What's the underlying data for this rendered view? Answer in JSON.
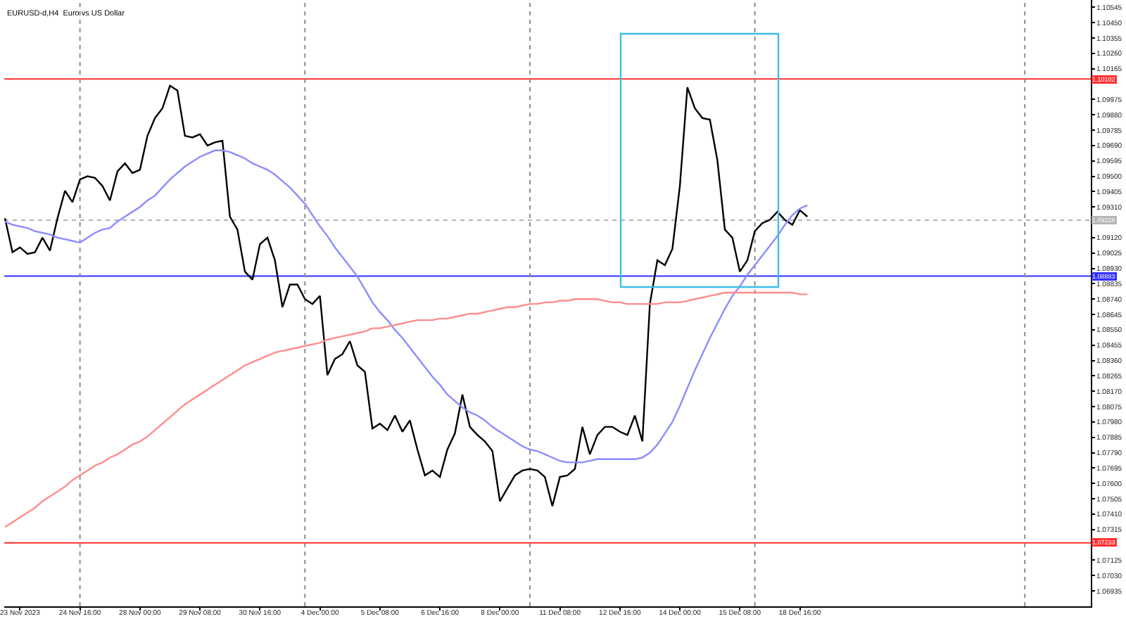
{
  "chart_data": {
    "type": "line",
    "title": "EURUSD-d,H4  Euro vs US Dollar",
    "categories": [
      null,
      null,
      "23 Nov 2023",
      null,
      null,
      null,
      null,
      null,
      null,
      null,
      "24 Nov 16:00",
      null,
      null,
      null,
      null,
      null,
      null,
      null,
      "28 Nov 00:00",
      null,
      null,
      null,
      null,
      null,
      null,
      null,
      "29 Nov 08:00",
      null,
      null,
      null,
      null,
      null,
      null,
      null,
      "30 Nov 16:00",
      null,
      null,
      null,
      null,
      null,
      null,
      null,
      "4 Dec 00:00",
      null,
      null,
      null,
      null,
      null,
      null,
      null,
      "5 Dec 08:00",
      null,
      null,
      null,
      null,
      null,
      null,
      null,
      "6 Dec 16:00",
      null,
      null,
      null,
      null,
      null,
      null,
      null,
      "8 Dec 00:00",
      null,
      null,
      null,
      null,
      null,
      null,
      null,
      "11 Dec 08:00",
      null,
      null,
      null,
      null,
      null,
      null,
      null,
      "12 Dec 16:00",
      null,
      null,
      null,
      null,
      null,
      null,
      null,
      "14 Dec 00:00",
      null,
      null,
      null,
      null,
      null,
      null,
      null,
      "15 Dec 08:00",
      null,
      null,
      null,
      null,
      null,
      null,
      null,
      "18 Dec 16:00",
      null,
      null,
      null,
      null,
      null,
      null,
      null,
      null,
      null,
      null,
      null,
      null,
      null,
      null,
      null,
      null,
      null,
      null,
      null,
      null,
      null,
      null,
      null,
      null,
      null,
      null,
      null,
      null,
      null,
      null,
      null,
      null,
      null,
      null,
      null,
      null,
      null,
      null
    ],
    "series": [
      {
        "color": "#000000",
        "values": [
          1.0924,
          1.0903,
          1.0906,
          1.0902,
          1.0903,
          1.0912,
          1.0904,
          1.0924,
          1.0941,
          1.0934,
          1.0948,
          1.095,
          1.0949,
          1.0944,
          1.0935,
          1.0953,
          1.0958,
          1.0952,
          1.0954,
          1.0975,
          1.0986,
          1.0992,
          1.1006,
          1.1003,
          1.0975,
          1.0974,
          1.0976,
          1.0969,
          1.0971,
          1.0972,
          1.0925,
          1.0917,
          1.0891,
          1.0886,
          1.0908,
          1.0912,
          1.0898,
          1.0869,
          1.0883,
          1.0883,
          1.0874,
          1.0871,
          1.0876,
          1.0827,
          1.0837,
          1.084,
          1.0848,
          1.0833,
          1.0829,
          1.0794,
          1.0797,
          1.0793,
          1.0802,
          1.0792,
          1.0799,
          1.0781,
          1.0765,
          1.0768,
          1.0764,
          1.0781,
          1.0791,
          1.0815,
          1.0795,
          1.079,
          1.0786,
          1.078,
          1.0749,
          1.0757,
          1.0765,
          1.0768,
          1.0769,
          1.0768,
          1.0764,
          1.0746,
          1.0764,
          1.0765,
          1.0769,
          1.0795,
          1.0778,
          1.079,
          1.0795,
          1.0795,
          1.0792,
          1.079,
          1.0802,
          1.0786,
          1.0871,
          1.0898,
          1.0895,
          1.0905,
          1.0944,
          1.1005,
          1.0992,
          1.0986,
          1.0985,
          1.096,
          1.0917,
          1.0912,
          1.0891,
          1.0898,
          1.0916,
          1.0921,
          1.0923,
          1.0928,
          1.0923,
          1.092,
          1.0929,
          1.0925,
          null,
          null,
          null,
          null,
          null,
          null,
          null,
          null,
          null,
          null,
          null,
          null,
          null,
          null,
          null,
          null,
          null,
          null,
          null,
          null,
          null,
          null,
          null,
          null,
          null,
          null,
          null,
          null,
          null,
          null,
          null,
          null,
          null,
          null,
          null,
          null,
          null
        ]
      },
      {
        "color": "#8c8cff",
        "values": [
          1.0922,
          1.092,
          1.0919,
          1.0918,
          1.0916,
          1.0915,
          1.0914,
          1.0912,
          1.0911,
          1.091,
          1.0909,
          1.0912,
          1.0915,
          1.0917,
          1.0918,
          1.0922,
          1.0925,
          1.0928,
          1.0931,
          1.0935,
          1.0938,
          1.0943,
          1.0948,
          1.0952,
          1.0956,
          1.0959,
          1.0962,
          1.0964,
          1.0966,
          1.0966,
          1.0965,
          1.0963,
          1.0961,
          1.0958,
          1.0956,
          1.0954,
          1.0951,
          1.0947,
          1.0943,
          1.0938,
          1.0933,
          1.0926,
          1.0919,
          1.0913,
          1.0906,
          1.09,
          1.0894,
          1.0888,
          1.088,
          1.0872,
          1.0866,
          1.0861,
          1.0855,
          1.085,
          1.0844,
          1.0838,
          1.0832,
          1.0826,
          1.0821,
          1.0815,
          1.0811,
          1.0807,
          1.0804,
          1.0802,
          1.0799,
          1.0795,
          1.0792,
          1.0789,
          1.0786,
          1.0783,
          1.0781,
          1.078,
          1.0778,
          1.0776,
          1.0774,
          1.0773,
          1.0773,
          1.0773,
          1.0774,
          1.0775,
          1.0775,
          1.0775,
          1.0775,
          1.0775,
          1.0775,
          1.0776,
          1.0779,
          1.0784,
          1.0791,
          1.0798,
          1.0808,
          1.0819,
          1.083,
          1.084,
          1.085,
          1.0859,
          1.0868,
          1.0876,
          1.0882,
          1.0889,
          1.0895,
          1.0901,
          1.0907,
          1.0913,
          1.092,
          1.0926,
          1.093,
          1.0932,
          null,
          null,
          null,
          null,
          null,
          null,
          null,
          null,
          null,
          null,
          null,
          null,
          null,
          null,
          null,
          null,
          null,
          null,
          null,
          null,
          null,
          null,
          null,
          null,
          null,
          null,
          null,
          null,
          null,
          null,
          null,
          null,
          null,
          null,
          null,
          null,
          null
        ]
      },
      {
        "color": "#ff8c8c",
        "values": [
          1.0733,
          1.0736,
          1.0739,
          1.0742,
          1.0745,
          1.0749,
          1.0752,
          1.0755,
          1.0758,
          1.0762,
          1.0765,
          1.0768,
          1.0771,
          1.0773,
          1.0776,
          1.0778,
          1.0781,
          1.0784,
          1.0786,
          1.0789,
          1.0793,
          1.0797,
          1.0801,
          1.0805,
          1.0809,
          1.0812,
          1.0815,
          1.0818,
          1.0821,
          1.0824,
          1.0827,
          1.083,
          1.0833,
          1.0835,
          1.0837,
          1.0839,
          1.0841,
          1.0842,
          1.0843,
          1.0844,
          1.0845,
          1.0846,
          1.0847,
          1.0849,
          1.085,
          1.0851,
          1.0852,
          1.0853,
          1.0854,
          1.0856,
          1.0856,
          1.0857,
          1.0858,
          1.0859,
          1.086,
          1.0861,
          1.0861,
          1.0861,
          1.0862,
          1.0862,
          1.0863,
          1.0864,
          1.0865,
          1.0865,
          1.0866,
          1.0867,
          1.0868,
          1.0869,
          1.0869,
          1.087,
          1.0871,
          1.0871,
          1.0872,
          1.0872,
          1.0873,
          1.0873,
          1.0874,
          1.0874,
          1.0874,
          1.0874,
          1.0873,
          1.0872,
          1.0872,
          1.0871,
          1.0871,
          1.0871,
          1.0871,
          1.0871,
          1.0872,
          1.0872,
          1.0872,
          1.0873,
          1.0874,
          1.0875,
          1.0876,
          1.0877,
          1.0878,
          1.0878,
          1.0878,
          1.0878,
          1.0878,
          1.0878,
          1.0878,
          1.0878,
          1.0878,
          1.0878,
          1.0877,
          1.0877,
          null,
          null,
          null,
          null,
          null,
          null,
          null,
          null,
          null,
          null,
          null,
          null,
          null,
          null,
          null,
          null,
          null,
          null,
          null,
          null,
          null,
          null,
          null,
          null,
          null,
          null,
          null,
          null,
          null,
          null,
          null,
          null,
          null,
          null,
          null,
          null,
          null
        ]
      }
    ],
    "ylim": [
      1.0684,
      1.1059
    ],
    "yticks": [
      1.10545,
      {
        "value": 1.1045,
        "label": "1.10450"
      },
      1.10355,
      {
        "value": 1.1026,
        "label": "1.10260"
      },
      1.10165,
      1.09975,
      {
        "value": 1.0988,
        "label": "1.09880"
      },
      1.09785,
      {
        "value": 1.0969,
        "label": "1.09690"
      },
      1.09595,
      {
        "value": 1.095,
        "label": "1.09500"
      },
      1.09405,
      {
        "value": 1.0931,
        "label": "1.09310"
      },
      {
        "value": 1.0912,
        "label": "1.09120"
      },
      1.09025,
      {
        "value": 1.0893,
        "label": "1.08930"
      },
      1.08835,
      {
        "value": 1.0874,
        "label": "1.08740"
      },
      1.08645,
      {
        "value": 1.0855,
        "label": "1.08550"
      },
      1.08455,
      {
        "value": 1.0836,
        "label": "1.08360"
      },
      1.08265,
      {
        "value": 1.0817,
        "label": "1.08170"
      },
      1.08075,
      {
        "value": 1.0798,
        "label": "1.07980"
      },
      1.07885,
      {
        "value": 1.0779,
        "label": "1.07790"
      },
      1.07695,
      {
        "value": 1.076,
        "label": "1.07600"
      },
      1.07505,
      {
        "value": 1.0741,
        "label": "1.07410"
      },
      1.07315,
      1.07125,
      {
        "value": 1.0703,
        "label": "1.07030"
      },
      1.06935
    ],
    "ref_lines": [
      {
        "axis": "y",
        "value": 1.10102,
        "label": "1.10102",
        "color": "#ff3030"
      },
      {
        "axis": "y",
        "value": 1.08883,
        "label": "1.08883",
        "color": "#3030ff"
      },
      {
        "axis": "y",
        "value": 1.09228,
        "label": "1.09228",
        "color": "#b4b4b4",
        "line_style": "dotted"
      },
      {
        "axis": "y",
        "value": 1.07233,
        "label": "1.07233",
        "color": "#ff3030"
      }
    ]
  }
}
